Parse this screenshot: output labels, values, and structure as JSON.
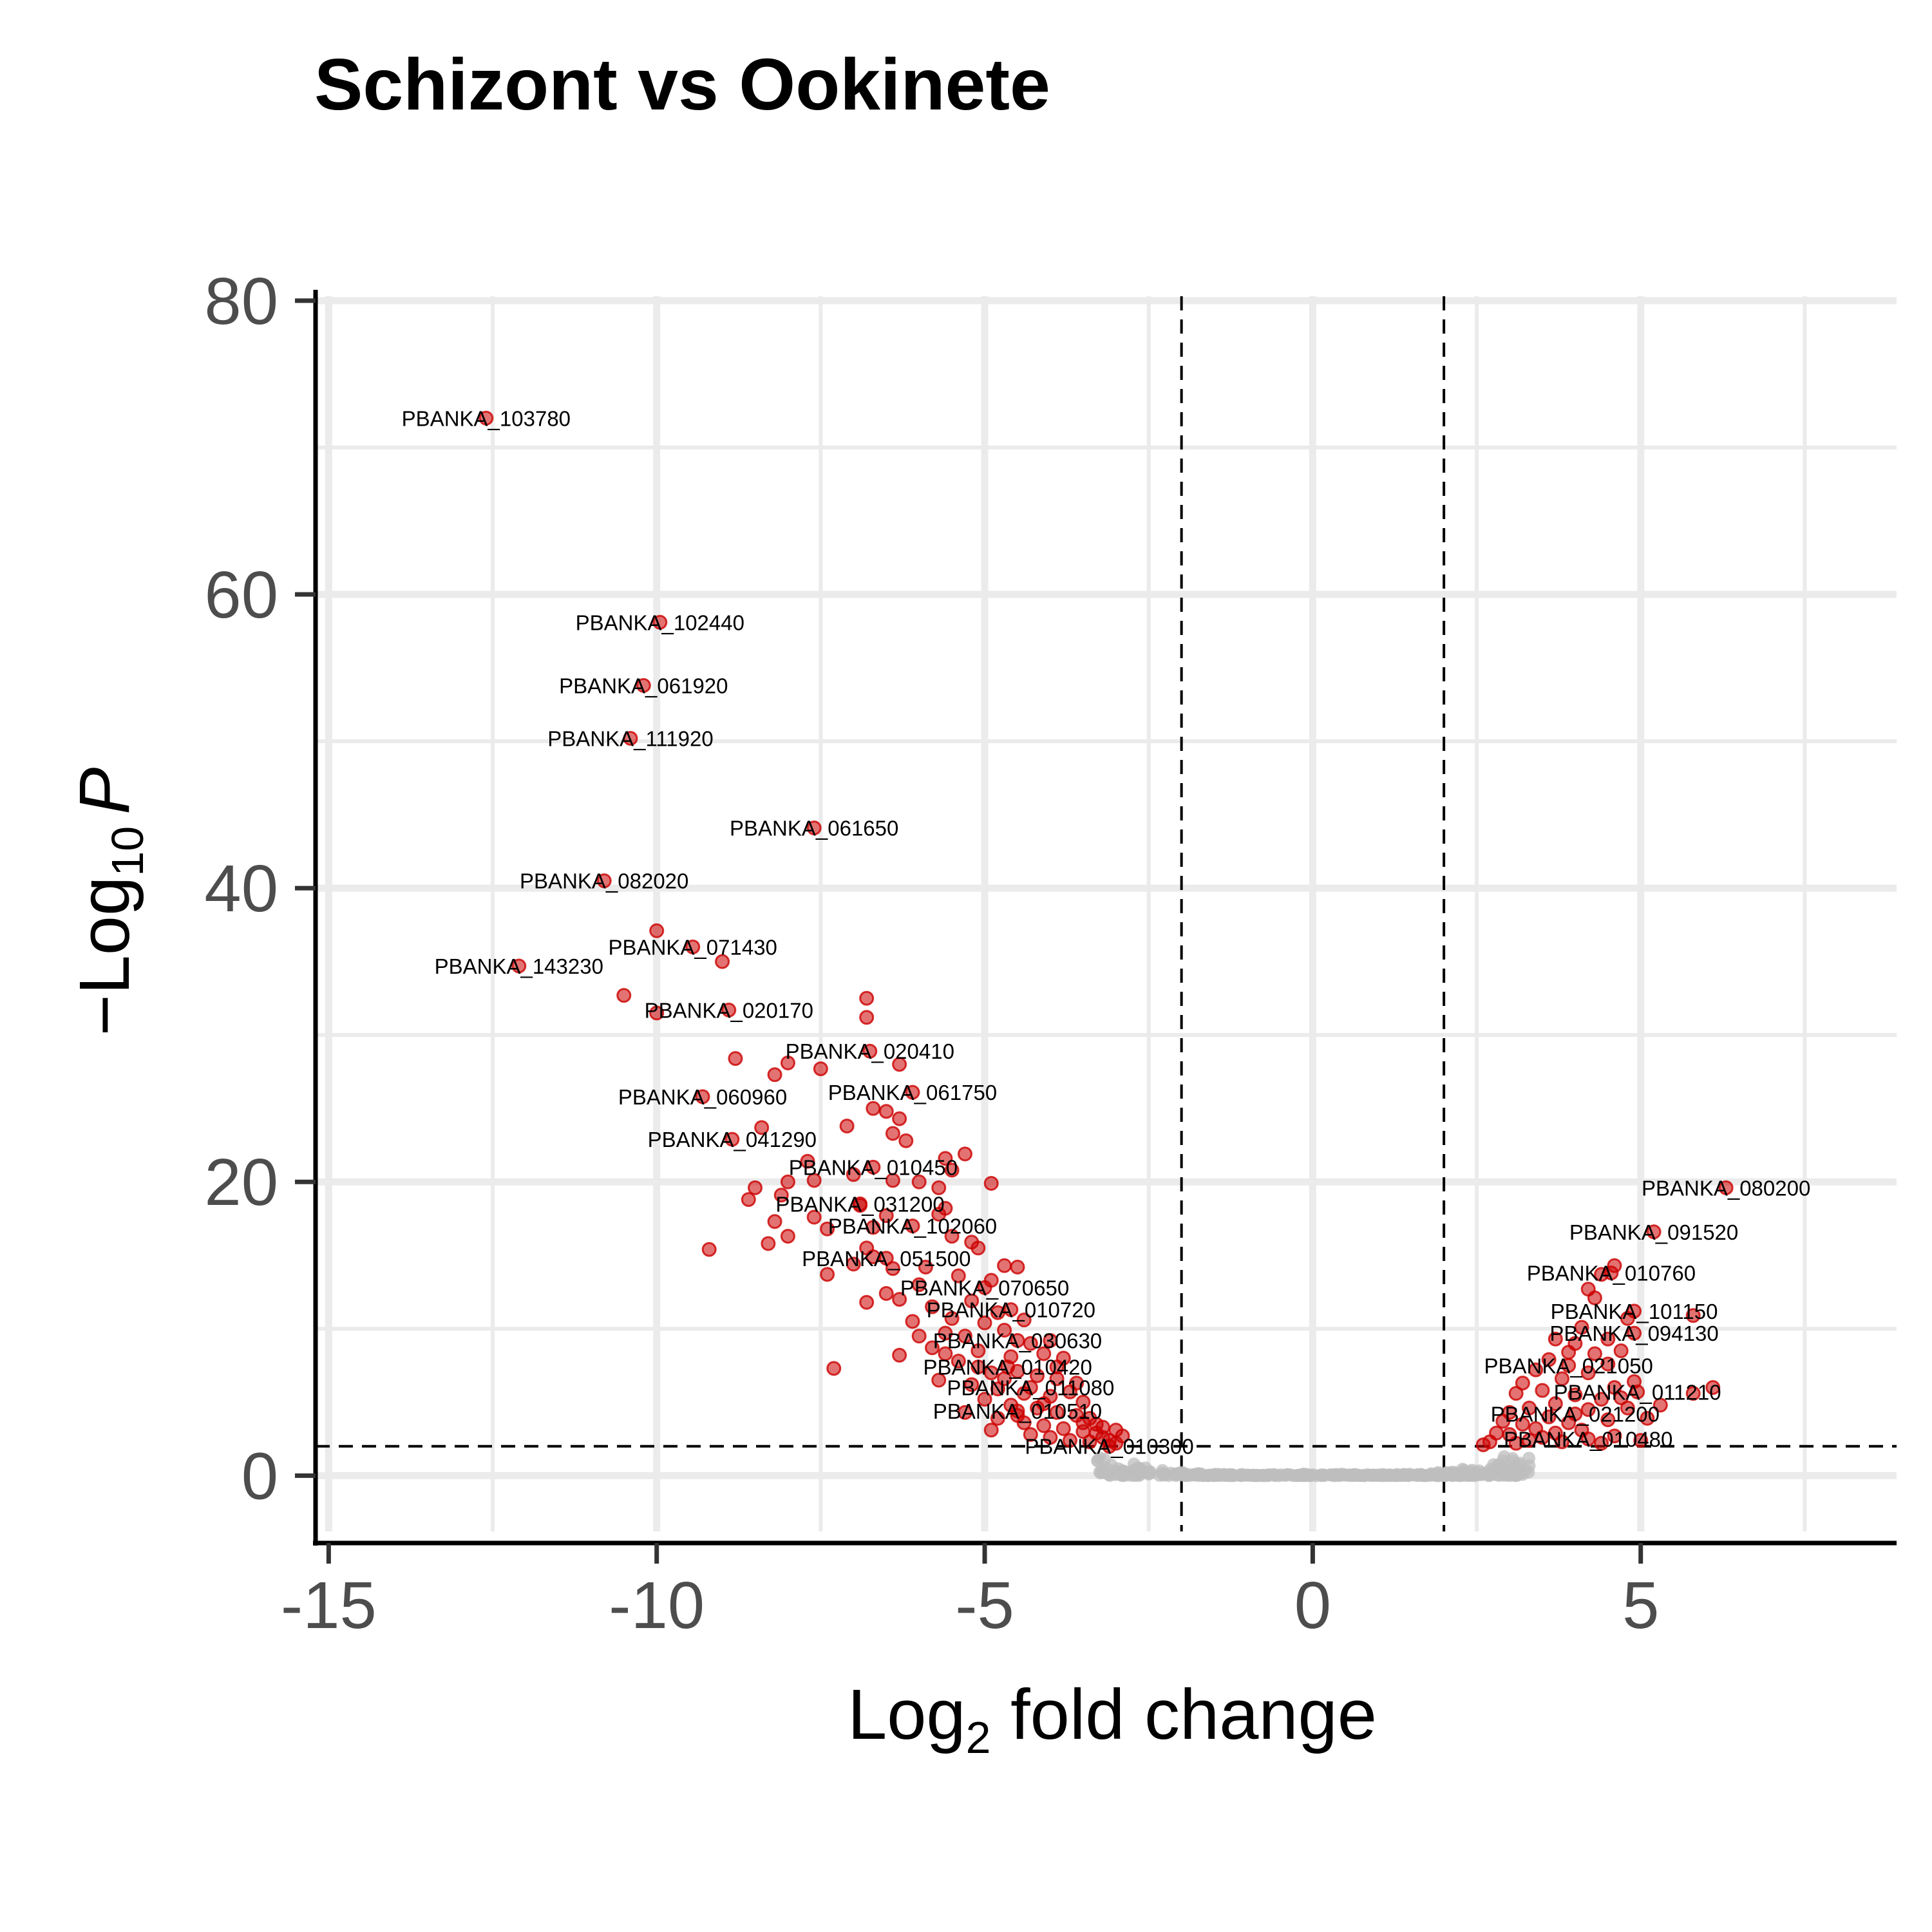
{
  "chart_data": {
    "type": "scatter",
    "title": "Schizont vs Ookinete",
    "xlabel": {
      "main": "Log",
      "sub": "2",
      "rest": " fold change"
    },
    "ylabel": {
      "prefix": "−Log",
      "sub": "10",
      "italic": "P"
    },
    "xlim": [
      -15.2,
      8.9
    ],
    "ylim": [
      -3.8,
      80.3
    ],
    "x_ticks": [
      -15,
      -10,
      -5,
      0,
      5
    ],
    "x_tick_labels": [
      "-15",
      "-10",
      "-5",
      "0",
      "5"
    ],
    "y_ticks": [
      0,
      20,
      40,
      60,
      80
    ],
    "y_tick_labels": [
      "0",
      "20",
      "40",
      "60",
      "80"
    ],
    "grid": true,
    "cutoffs": {
      "fold_change": [
        -2,
        2
      ],
      "neg_log10_p": 2
    },
    "colors": {
      "significant": "#cc0000",
      "not_significant": "#bebebe",
      "grid": "#ebebeb"
    },
    "labeled_points": [
      {
        "gene": "PBANKA_103780",
        "x": -12.6,
        "y": 72.0
      },
      {
        "gene": "PBANKA_102440",
        "x": -9.95,
        "y": 58.1
      },
      {
        "gene": "PBANKA_061920",
        "x": -10.2,
        "y": 53.8
      },
      {
        "gene": "PBANKA_111920",
        "x": -10.4,
        "y": 50.2
      },
      {
        "gene": "PBANKA_061650",
        "x": -7.6,
        "y": 44.1
      },
      {
        "gene": "PBANKA_082020",
        "x": -10.8,
        "y": 40.5
      },
      {
        "gene": "PBANKA_071430",
        "x": -9.45,
        "y": 36.0
      },
      {
        "gene": "PBANKA_143230",
        "x": -12.1,
        "y": 34.7
      },
      {
        "gene": "PBANKA_020170",
        "x": -8.9,
        "y": 31.7
      },
      {
        "gene": "PBANKA_020410",
        "x": -6.75,
        "y": 28.9
      },
      {
        "gene": "PBANKA_060960",
        "x": -9.3,
        "y": 25.8
      },
      {
        "gene": "PBANKA_061750",
        "x": -6.1,
        "y": 26.1
      },
      {
        "gene": "PBANKA_041290",
        "x": -8.85,
        "y": 22.9
      },
      {
        "gene": "PBANKA_010450",
        "x": -6.7,
        "y": 21.0
      },
      {
        "gene": "PBANKA_031200",
        "x": -6.9,
        "y": 18.5
      },
      {
        "gene": "PBANKA_102060",
        "x": -6.1,
        "y": 17.0
      },
      {
        "gene": "PBANKA_051500",
        "x": -6.5,
        "y": 14.8
      },
      {
        "gene": "PBANKA_070650",
        "x": -5.0,
        "y": 12.8
      },
      {
        "gene": "PBANKA_010720",
        "x": -4.6,
        "y": 11.3
      },
      {
        "gene": "PBANKA_030630",
        "x": -4.5,
        "y": 9.2
      },
      {
        "gene": "PBANKA_010420",
        "x": -4.65,
        "y": 7.4
      },
      {
        "gene": "PBANKA_011080",
        "x": -4.3,
        "y": 6.0
      },
      {
        "gene": "PBANKA_010510",
        "x": -4.5,
        "y": 4.4
      },
      {
        "gene": "PBANKA_010300",
        "x": -3.1,
        "y": 2.0
      },
      {
        "gene": "PBANKA_080200",
        "x": 6.3,
        "y": 19.6
      },
      {
        "gene": "PBANKA_091520",
        "x": 5.2,
        "y": 16.6
      },
      {
        "gene": "PBANKA_010760",
        "x": 4.55,
        "y": 13.8
      },
      {
        "gene": "PBANKA_101150",
        "x": 4.9,
        "y": 11.2
      },
      {
        "gene": "PBANKA_094130",
        "x": 4.9,
        "y": 9.7
      },
      {
        "gene": "PBANKA_021050",
        "x": 3.9,
        "y": 7.5
      },
      {
        "gene": "PBANKA_011210",
        "x": 4.95,
        "y": 5.7
      },
      {
        "gene": "PBANKA_021200",
        "x": 4.0,
        "y": 4.2
      },
      {
        "gene": "PBANKA_010480",
        "x": 4.2,
        "y": 2.5
      }
    ],
    "label_offsets_note": "",
    "unlabeled_significant": [
      [
        -10.0,
        37.1
      ],
      [
        -9.0,
        35.0
      ],
      [
        -10.5,
        32.7
      ],
      [
        -10.0,
        31.5
      ],
      [
        -6.8,
        32.5
      ],
      [
        -6.8,
        31.2
      ],
      [
        -8.8,
        28.4
      ],
      [
        -8.0,
        28.1
      ],
      [
        -8.2,
        27.3
      ],
      [
        -7.5,
        27.7
      ],
      [
        -6.3,
        28.0
      ],
      [
        -6.5,
        24.8
      ],
      [
        -6.7,
        25.0
      ],
      [
        -7.1,
        23.8
      ],
      [
        -8.4,
        23.7
      ],
      [
        -6.3,
        24.3
      ],
      [
        -6.4,
        23.3
      ],
      [
        -6.2,
        22.8
      ],
      [
        -7.7,
        21.4
      ],
      [
        -5.3,
        21.9
      ],
      [
        -5.6,
        21.6
      ],
      [
        -5.5,
        20.8
      ],
      [
        -7.0,
        20.5
      ],
      [
        -8.0,
        20.0
      ],
      [
        -7.6,
        20.1
      ],
      [
        -6.0,
        20.0
      ],
      [
        -6.4,
        20.1
      ],
      [
        -5.7,
        19.6
      ],
      [
        -4.9,
        19.9
      ],
      [
        -8.5,
        19.6
      ],
      [
        -8.6,
        18.8
      ],
      [
        -8.1,
        19.1
      ],
      [
        -6.9,
        18.4
      ],
      [
        -7.6,
        17.6
      ],
      [
        -8.2,
        17.3
      ],
      [
        -5.6,
        18.2
      ],
      [
        -5.7,
        17.8
      ],
      [
        -6.5,
        17.7
      ],
      [
        -6.7,
        16.9
      ],
      [
        -7.4,
        16.8
      ],
      [
        -8.0,
        16.3
      ],
      [
        -8.3,
        15.8
      ],
      [
        -5.5,
        16.3
      ],
      [
        -5.2,
        15.9
      ],
      [
        -5.1,
        15.5
      ],
      [
        -9.2,
        15.4
      ],
      [
        -7.0,
        14.4
      ],
      [
        -6.7,
        14.9
      ],
      [
        -6.4,
        14.1
      ],
      [
        -6.8,
        15.5
      ],
      [
        -5.9,
        14.2
      ],
      [
        -7.4,
        13.7
      ],
      [
        -4.7,
        14.3
      ],
      [
        -4.5,
        14.2
      ],
      [
        -4.9,
        13.3
      ],
      [
        -5.4,
        13.6
      ],
      [
        -6.0,
        13.0
      ],
      [
        -6.5,
        12.4
      ],
      [
        -6.8,
        11.8
      ],
      [
        -6.3,
        12.0
      ],
      [
        -5.8,
        11.5
      ],
      [
        -5.2,
        11.9
      ],
      [
        -4.8,
        11.1
      ],
      [
        -5.5,
        10.7
      ],
      [
        -5.0,
        10.4
      ],
      [
        -4.4,
        10.6
      ],
      [
        -6.1,
        10.5
      ],
      [
        -5.6,
        9.7
      ],
      [
        -5.3,
        9.5
      ],
      [
        -4.7,
        9.9
      ],
      [
        -4.3,
        9.0
      ],
      [
        -4.0,
        9.2
      ],
      [
        -6.0,
        9.5
      ],
      [
        -6.3,
        8.2
      ],
      [
        -5.8,
        8.7
      ],
      [
        -5.1,
        8.5
      ],
      [
        -4.6,
        8.1
      ],
      [
        -4.1,
        8.3
      ],
      [
        -3.8,
        8.0
      ],
      [
        -7.3,
        7.3
      ],
      [
        -5.4,
        7.8
      ],
      [
        -4.9,
        7.0
      ],
      [
        -4.5,
        7.1
      ],
      [
        -4.2,
        6.8
      ],
      [
        -3.9,
        6.6
      ],
      [
        -5.7,
        6.5
      ],
      [
        -5.2,
        6.2
      ],
      [
        -4.8,
        5.9
      ],
      [
        -4.4,
        5.6
      ],
      [
        -4.0,
        5.4
      ],
      [
        -3.7,
        5.7
      ],
      [
        -3.5,
        5.0
      ],
      [
        -5.0,
        5.2
      ],
      [
        -4.6,
        4.8
      ],
      [
        -4.2,
        4.6
      ],
      [
        -3.9,
        4.3
      ],
      [
        -3.6,
        4.1
      ],
      [
        -3.4,
        3.9
      ],
      [
        -4.8,
        3.9
      ],
      [
        -4.4,
        3.6
      ],
      [
        -4.1,
        3.4
      ],
      [
        -3.8,
        3.2
      ],
      [
        -3.5,
        3.0
      ],
      [
        -3.3,
        2.9
      ],
      [
        -3.2,
        2.6
      ],
      [
        -4.3,
        2.8
      ],
      [
        -4.0,
        2.6
      ],
      [
        -3.7,
        2.4
      ],
      [
        -3.4,
        2.3
      ],
      [
        -3.1,
        2.4
      ],
      [
        -3.0,
        2.2
      ],
      [
        -4.9,
        3.1
      ],
      [
        -5.3,
        4.3
      ],
      [
        -3.6,
        6.3
      ],
      [
        -3.3,
        3.5
      ],
      [
        -3.9,
        7.4
      ],
      [
        -4.7,
        6.6
      ],
      [
        -5.1,
        7.4
      ],
      [
        -5.6,
        8.3
      ],
      [
        -3.0,
        3.1
      ],
      [
        -2.9,
        2.7
      ],
      [
        -3.2,
        3.3
      ],
      [
        -3.5,
        3.6
      ],
      [
        -4.5,
        4.1
      ],
      [
        -4.1,
        4.9
      ],
      [
        6.1,
        6.0
      ],
      [
        5.8,
        10.9
      ],
      [
        5.3,
        4.8
      ],
      [
        5.8,
        5.6
      ],
      [
        4.6,
        14.3
      ],
      [
        4.4,
        13.7
      ],
      [
        4.2,
        12.7
      ],
      [
        4.3,
        12.1
      ],
      [
        4.8,
        10.7
      ],
      [
        4.1,
        10.1
      ],
      [
        4.5,
        9.3
      ],
      [
        3.7,
        9.3
      ],
      [
        4.0,
        9.0
      ],
      [
        4.7,
        8.5
      ],
      [
        4.3,
        8.3
      ],
      [
        3.9,
        8.4
      ],
      [
        3.6,
        7.9
      ],
      [
        4.5,
        7.6
      ],
      [
        4.2,
        7.0
      ],
      [
        3.4,
        7.2
      ],
      [
        3.8,
        6.6
      ],
      [
        4.9,
        6.4
      ],
      [
        4.6,
        6.0
      ],
      [
        3.2,
        6.3
      ],
      [
        3.5,
        5.8
      ],
      [
        4.0,
        5.5
      ],
      [
        4.4,
        5.2
      ],
      [
        3.1,
        5.6
      ],
      [
        3.7,
        4.9
      ],
      [
        4.8,
        4.6
      ],
      [
        3.3,
        4.6
      ],
      [
        4.2,
        4.5
      ],
      [
        3.0,
        4.3
      ],
      [
        3.6,
        4.0
      ],
      [
        4.5,
        3.8
      ],
      [
        3.9,
        3.6
      ],
      [
        3.2,
        3.5
      ],
      [
        2.9,
        3.7
      ],
      [
        3.4,
        3.2
      ],
      [
        4.1,
        3.1
      ],
      [
        3.7,
        2.9
      ],
      [
        3.0,
        2.8
      ],
      [
        2.8,
        2.9
      ],
      [
        3.5,
        2.6
      ],
      [
        4.6,
        2.7
      ],
      [
        3.3,
        2.4
      ],
      [
        2.7,
        2.3
      ],
      [
        3.1,
        2.2
      ],
      [
        3.8,
        2.3
      ],
      [
        4.4,
        2.2
      ],
      [
        5.0,
        2.4
      ],
      [
        2.6,
        2.1
      ],
      [
        5.1,
        3.9
      ],
      [
        4.7,
        5.3
      ]
    ]
  }
}
